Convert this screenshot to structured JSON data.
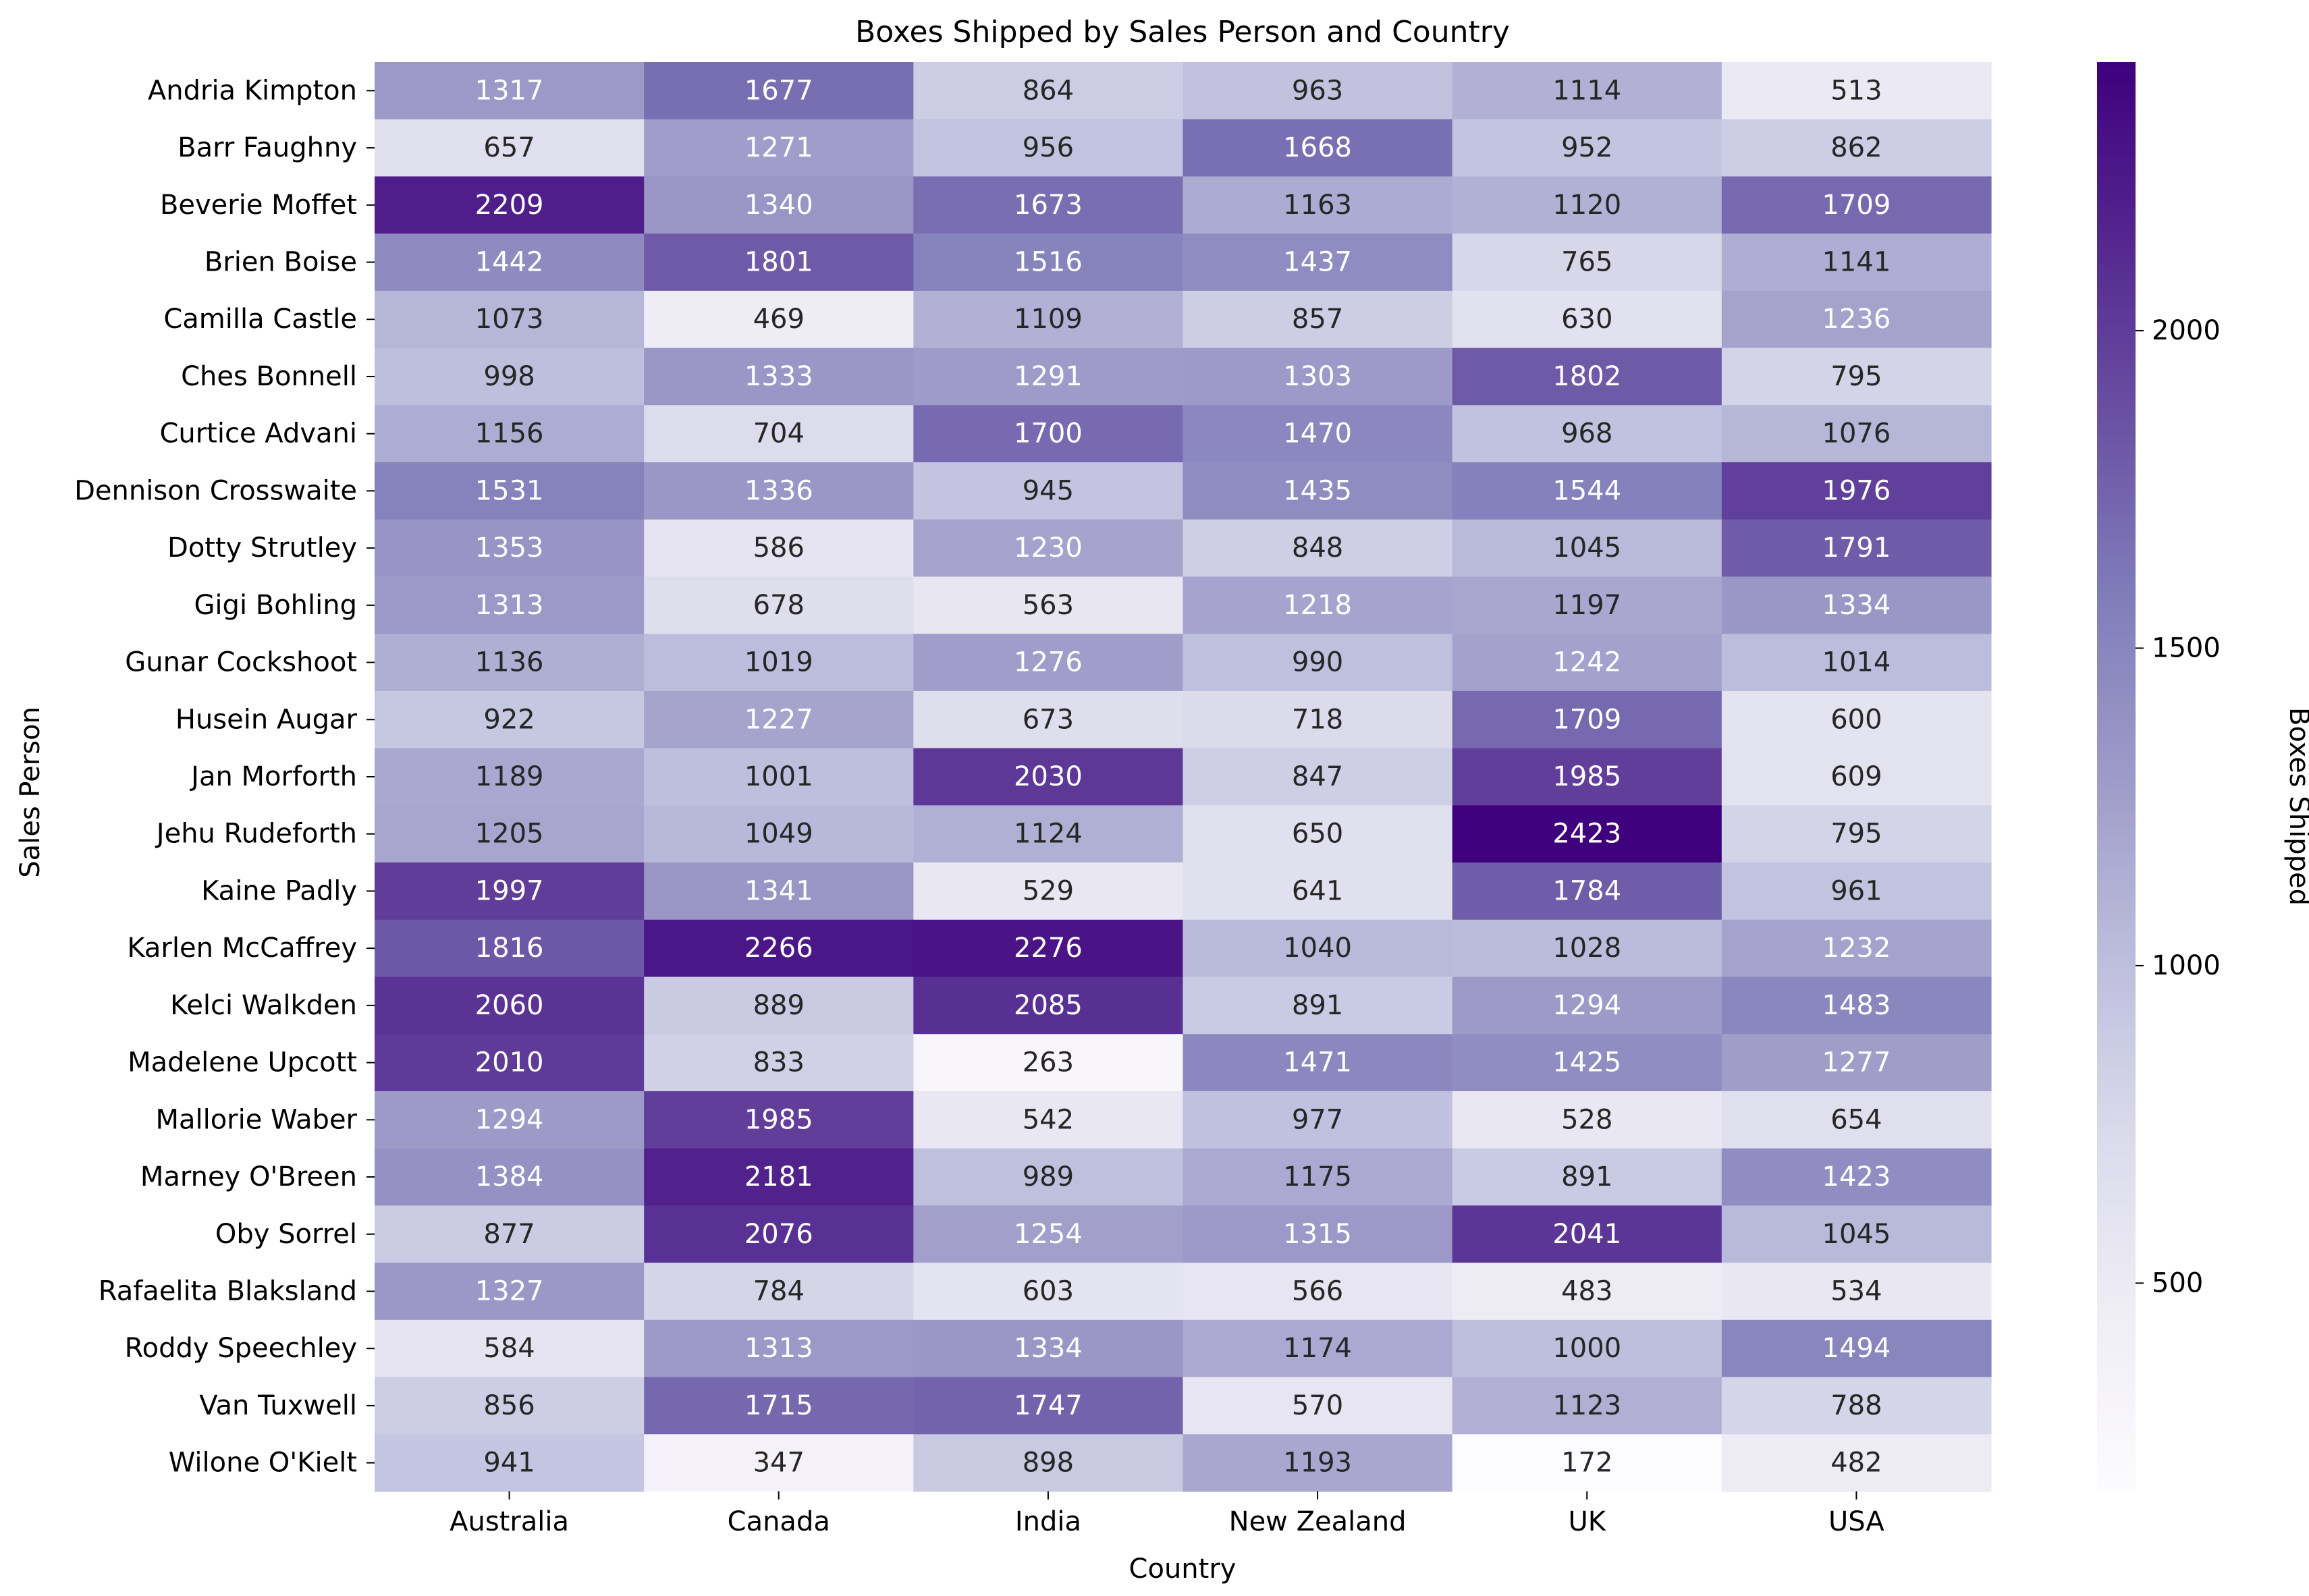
{
  "chart_data": {
    "type": "heatmap",
    "title": "Boxes Shipped by Sales Person and Country",
    "xlabel": "Country",
    "ylabel": "Sales Person",
    "colorbar_label": "Boxes Shipped",
    "colormap": "Purples",
    "color_range": [
      172,
      2423
    ],
    "colorbar_ticks": [
      500,
      1000,
      1500,
      2000
    ],
    "x": [
      "Australia",
      "Canada",
      "India",
      "New Zealand",
      "UK",
      "USA"
    ],
    "y": [
      "Andria Kimpton",
      "Barr Faughny",
      "Beverie Moffet",
      "Brien Boise",
      "Camilla Castle",
      "Ches Bonnell",
      "Curtice Advani",
      "Dennison Crosswaite",
      "Dotty Strutley",
      "Gigi Bohling",
      "Gunar Cockshoot",
      "Husein Augar",
      "Jan Morforth",
      "Jehu Rudeforth",
      "Kaine Padly",
      "Karlen McCaffrey",
      "Kelci Walkden",
      "Madelene Upcott",
      "Mallorie Waber",
      "Marney O'Breen",
      "Oby Sorrel",
      "Rafaelita Blaksland",
      "Roddy Speechley",
      "Van Tuxwell",
      "Wilone O'Kielt"
    ],
    "values": [
      [
        1317,
        1677,
        864,
        963,
        1114,
        513
      ],
      [
        657,
        1271,
        956,
        1668,
        952,
        862
      ],
      [
        2209,
        1340,
        1673,
        1163,
        1120,
        1709
      ],
      [
        1442,
        1801,
        1516,
        1437,
        765,
        1141
      ],
      [
        1073,
        469,
        1109,
        857,
        630,
        1236
      ],
      [
        998,
        1333,
        1291,
        1303,
        1802,
        795
      ],
      [
        1156,
        704,
        1700,
        1470,
        968,
        1076
      ],
      [
        1531,
        1336,
        945,
        1435,
        1544,
        1976
      ],
      [
        1353,
        586,
        1230,
        848,
        1045,
        1791
      ],
      [
        1313,
        678,
        563,
        1218,
        1197,
        1334
      ],
      [
        1136,
        1019,
        1276,
        990,
        1242,
        1014
      ],
      [
        922,
        1227,
        673,
        718,
        1709,
        600
      ],
      [
        1189,
        1001,
        2030,
        847,
        1985,
        609
      ],
      [
        1205,
        1049,
        1124,
        650,
        2423,
        795
      ],
      [
        1997,
        1341,
        529,
        641,
        1784,
        961
      ],
      [
        1816,
        2266,
        2276,
        1040,
        1028,
        1232
      ],
      [
        2060,
        889,
        2085,
        891,
        1294,
        1483
      ],
      [
        2010,
        833,
        263,
        1471,
        1425,
        1277
      ],
      [
        1294,
        1985,
        542,
        977,
        528,
        654
      ],
      [
        1384,
        2181,
        989,
        1175,
        891,
        1423
      ],
      [
        877,
        2076,
        1254,
        1315,
        2041,
        1045
      ],
      [
        1327,
        784,
        603,
        566,
        483,
        534
      ],
      [
        584,
        1313,
        1334,
        1174,
        1000,
        1494
      ],
      [
        856,
        1715,
        1747,
        570,
        1123,
        788
      ],
      [
        941,
        347,
        898,
        1193,
        172,
        482
      ]
    ]
  }
}
